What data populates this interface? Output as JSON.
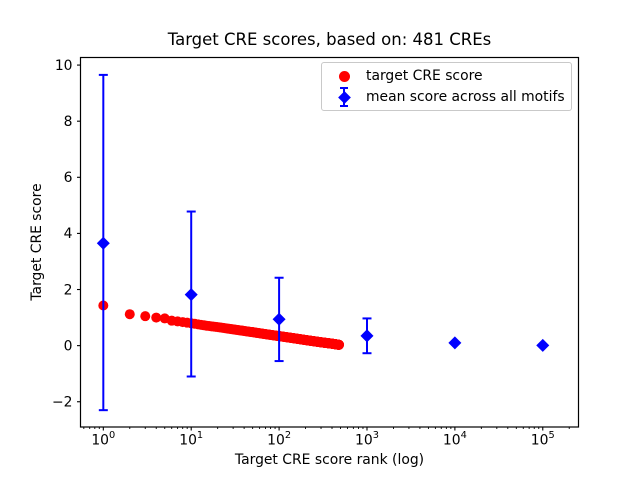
{
  "figure": {
    "title": "Target CRE scores, based on: 481 CREs",
    "xlabel": "Target CRE score rank (log)",
    "ylabel": "Target CRE score"
  },
  "legend": {
    "position": "upper right",
    "items": [
      {
        "label": "target CRE score",
        "marker": "red-circle",
        "color": "#ff0000"
      },
      {
        "label": "mean score across all motifs",
        "marker": "blue-diamond-errorbar",
        "color": "#0000ff"
      }
    ]
  },
  "chart_data": {
    "type": "scatter",
    "title": "Target CRE scores, based on: 481 CREs",
    "xlabel": "Target CRE score rank (log)",
    "ylabel": "Target CRE score",
    "xscale": "log",
    "grid": false,
    "legend_position": "upper right",
    "xlim": [
      0.55,
      255000
    ],
    "ylim": [
      -2.9,
      10.27
    ],
    "ytick_values": [
      -2,
      0,
      2,
      4,
      6,
      8,
      10
    ],
    "ytick_labels": [
      "−2",
      "0",
      "2",
      "4",
      "6",
      "8",
      "10"
    ],
    "xtick_labels": [
      {
        "base": "10",
        "exp": "0",
        "value": 1
      },
      {
        "base": "10",
        "exp": "1",
        "value": 10
      },
      {
        "base": "10",
        "exp": "2",
        "value": 100
      },
      {
        "base": "10",
        "exp": "3",
        "value": 1000
      },
      {
        "base": "10",
        "exp": "4",
        "value": 10000
      },
      {
        "base": "10",
        "exp": "5",
        "value": 100000
      }
    ],
    "series": [
      {
        "name": "target CRE score",
        "type": "scatter",
        "marker": "circle",
        "color": "#ff0000",
        "marker_radius_px": 5,
        "n_points": 481,
        "rank_anchors": [
          1,
          2,
          3,
          4,
          5,
          6,
          8,
          10,
          15,
          20,
          30,
          50,
          70,
          100,
          150,
          200,
          300,
          400,
          481
        ],
        "score_anchors": [
          1.43,
          1.12,
          1.05,
          1.0,
          0.97,
          0.89,
          0.84,
          0.8,
          0.71,
          0.66,
          0.58,
          0.48,
          0.41,
          0.34,
          0.26,
          0.2,
          0.12,
          0.07,
          0.03
        ]
      },
      {
        "name": "mean score across all motifs",
        "type": "errorbar",
        "marker": "diamond",
        "color": "#0000ff",
        "x": [
          1,
          10,
          100,
          1000,
          10000,
          100000
        ],
        "y": [
          3.65,
          1.82,
          0.94,
          0.35,
          0.1,
          0.01
        ],
        "y_low": [
          -2.3,
          -1.1,
          -0.55,
          -0.27,
          0.1,
          0.01
        ],
        "y_high": [
          9.65,
          4.78,
          2.42,
          0.97,
          0.1,
          0.01
        ]
      }
    ]
  }
}
